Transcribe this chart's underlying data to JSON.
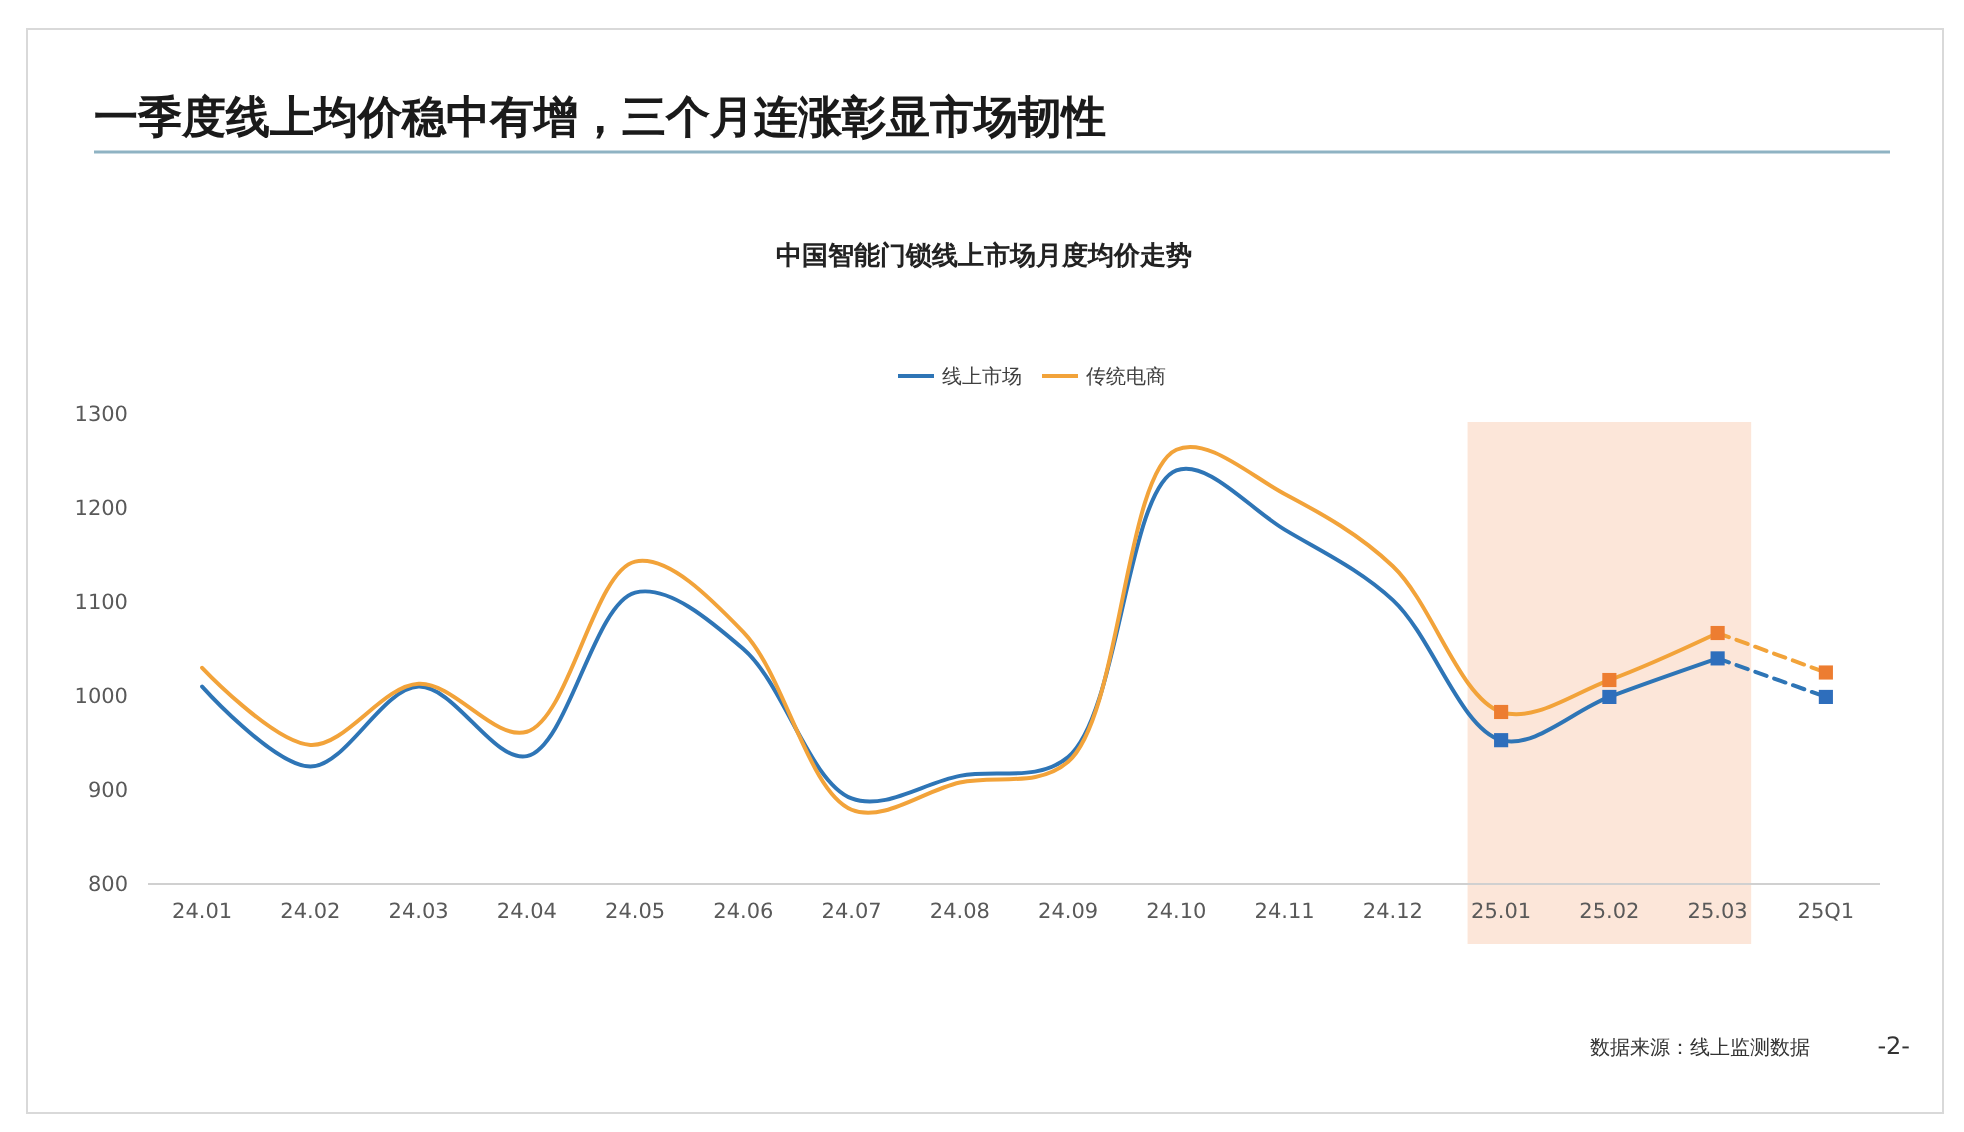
{
  "chart_data": {
    "type": "line",
    "title": "一季度线上均价稳中有增，三个月连涨彰显市场韧性",
    "subtitle": "中国智能门锁线上市场月度均价走势",
    "categories": [
      "24.01",
      "24.02",
      "24.03",
      "24.04",
      "24.05",
      "24.06",
      "24.07",
      "24.08",
      "24.09",
      "24.10",
      "24.11",
      "24.12",
      "25.01",
      "25.02",
      "25.03",
      "25Q1"
    ],
    "series": [
      {
        "name": "线上市场",
        "color": "#2e75b6",
        "values": [
          1010,
          925,
          1010,
          936,
          1110,
          1050,
          891,
          915,
          935,
          1240,
          1177,
          1102,
          953,
          999,
          1040,
          null
        ]
      },
      {
        "name": "传统电商",
        "color": "#f2a33a",
        "values": [
          1030,
          948,
          1013,
          962,
          1143,
          1068,
          879,
          908,
          930,
          1262,
          1215,
          1138,
          983,
          1017,
          1067,
          null
        ]
      },
      {
        "type": "line",
        "color": "#2e75b6",
        "line_style": "dashed",
        "values": [
          null,
          null,
          null,
          null,
          null,
          null,
          null,
          null,
          null,
          null,
          null,
          null,
          null,
          null,
          1040,
          999
        ]
      },
      {
        "type": "line",
        "color": "#f2a33a",
        "line_style": "dashed",
        "values": [
          null,
          null,
          null,
          null,
          null,
          null,
          null,
          null,
          null,
          null,
          null,
          null,
          null,
          null,
          1067,
          1025
        ]
      },
      {
        "type": "scatter",
        "color": "#2e6ebc",
        "marker": "square",
        "values": [
          null,
          null,
          null,
          null,
          null,
          null,
          null,
          null,
          null,
          null,
          null,
          null,
          953,
          999,
          1040,
          999
        ]
      },
      {
        "type": "scatter",
        "color": "#ed7d31",
        "marker": "square",
        "values": [
          null,
          null,
          null,
          null,
          null,
          null,
          null,
          null,
          null,
          null,
          null,
          null,
          983,
          1017,
          1067,
          1025
        ]
      }
    ],
    "ylim": [
      800,
      1300
    ],
    "yticks": [
      800,
      900,
      1000,
      1100,
      1200,
      1300
    ],
    "grid": false,
    "legend": "top",
    "line_style": "solid",
    "marker": "none",
    "bands": [
      {
        "axis": "x",
        "from": "25.01",
        "to": "25.03",
        "color": "#fce6d9"
      }
    ],
    "annotations": [
      "数据来源：线上监测数据",
      "-2-"
    ]
  }
}
